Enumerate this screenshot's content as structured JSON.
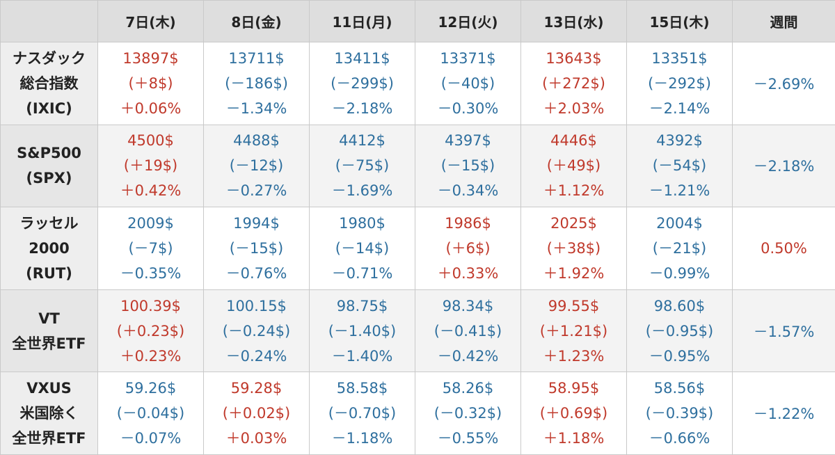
{
  "header": {
    "corner": "",
    "days": [
      "7日(木)",
      "8日(金)",
      "11日(月)",
      "12日(火)",
      "13日(水)",
      "15日(木)"
    ],
    "week": "週間"
  },
  "colors": {
    "up": "#c0392b",
    "down": "#2e6f9e",
    "header_bg": "#dedede"
  },
  "rows": [
    {
      "label": [
        "ナスダック",
        "総合指数",
        "(IXIC)"
      ],
      "cells": [
        {
          "dir": "up",
          "price": "13897$",
          "change": "(＋8$)",
          "pct": "＋0.06%"
        },
        {
          "dir": "down",
          "price": "13711$",
          "change": "(－186$)",
          "pct": "－1.34%"
        },
        {
          "dir": "down",
          "price": "13411$",
          "change": "(－299$)",
          "pct": "－2.18%"
        },
        {
          "dir": "down",
          "price": "13371$",
          "change": "(－40$)",
          "pct": "－0.30%"
        },
        {
          "dir": "up",
          "price": "13643$",
          "change": "(＋272$)",
          "pct": "＋2.03%"
        },
        {
          "dir": "down",
          "price": "13351$",
          "change": "(－292$)",
          "pct": "－2.14%"
        }
      ],
      "week": {
        "dir": "down",
        "value": "－2.69%"
      }
    },
    {
      "label": [
        "S&P500",
        "(SPX)"
      ],
      "cells": [
        {
          "dir": "up",
          "price": "4500$",
          "change": "(＋19$)",
          "pct": "＋0.42%"
        },
        {
          "dir": "down",
          "price": "4488$",
          "change": "(－12$)",
          "pct": "－0.27%"
        },
        {
          "dir": "down",
          "price": "4412$",
          "change": "(－75$)",
          "pct": "－1.69%"
        },
        {
          "dir": "down",
          "price": "4397$",
          "change": "(－15$)",
          "pct": "－0.34%"
        },
        {
          "dir": "up",
          "price": "4446$",
          "change": "(＋49$)",
          "pct": "＋1.12%"
        },
        {
          "dir": "down",
          "price": "4392$",
          "change": "(－54$)",
          "pct": "－1.21%"
        }
      ],
      "week": {
        "dir": "down",
        "value": "－2.18%"
      }
    },
    {
      "label": [
        "ラッセル",
        "2000",
        "(RUT)"
      ],
      "cells": [
        {
          "dir": "down",
          "price": "2009$",
          "change": "(－7$)",
          "pct": "－0.35%"
        },
        {
          "dir": "down",
          "price": "1994$",
          "change": "(－15$)",
          "pct": "－0.76%"
        },
        {
          "dir": "down",
          "price": "1980$",
          "change": "(－14$)",
          "pct": "－0.71%"
        },
        {
          "dir": "up",
          "price": "1986$",
          "change": "(＋6$)",
          "pct": "＋0.33%"
        },
        {
          "dir": "up",
          "price": "2025$",
          "change": "(＋38$)",
          "pct": "＋1.92%"
        },
        {
          "dir": "down",
          "price": "2004$",
          "change": "(－21$)",
          "pct": "－0.99%"
        }
      ],
      "week": {
        "dir": "up",
        "value": "0.50%"
      }
    },
    {
      "label": [
        "VT",
        "全世界ETF"
      ],
      "cells": [
        {
          "dir": "up",
          "price": "100.39$",
          "change": "(＋0.23$)",
          "pct": "＋0.23%"
        },
        {
          "dir": "down",
          "price": "100.15$",
          "change": "(－0.24$)",
          "pct": "－0.24%"
        },
        {
          "dir": "down",
          "price": "98.75$",
          "change": "(－1.40$)",
          "pct": "－1.40%"
        },
        {
          "dir": "down",
          "price": "98.34$",
          "change": "(－0.41$)",
          "pct": "－0.42%"
        },
        {
          "dir": "up",
          "price": "99.55$",
          "change": "(＋1.21$)",
          "pct": "＋1.23%"
        },
        {
          "dir": "down",
          "price": "98.60$",
          "change": "(－0.95$)",
          "pct": "－0.95%"
        }
      ],
      "week": {
        "dir": "down",
        "value": "－1.57%"
      }
    },
    {
      "label": [
        "VXUS",
        "米国除く",
        "全世界ETF"
      ],
      "cells": [
        {
          "dir": "down",
          "price": "59.26$",
          "change": "(－0.04$)",
          "pct": "－0.07%"
        },
        {
          "dir": "up",
          "price": "59.28$",
          "change": "(＋0.02$)",
          "pct": "＋0.03%"
        },
        {
          "dir": "down",
          "price": "58.58$",
          "change": "(－0.70$)",
          "pct": "－1.18%"
        },
        {
          "dir": "down",
          "price": "58.26$",
          "change": "(－0.32$)",
          "pct": "－0.55%"
        },
        {
          "dir": "up",
          "price": "58.95$",
          "change": "(＋0.69$)",
          "pct": "＋1.18%"
        },
        {
          "dir": "down",
          "price": "58.56$",
          "change": "(－0.39$)",
          "pct": "－0.66%"
        }
      ],
      "week": {
        "dir": "down",
        "value": "－1.22%"
      }
    }
  ]
}
